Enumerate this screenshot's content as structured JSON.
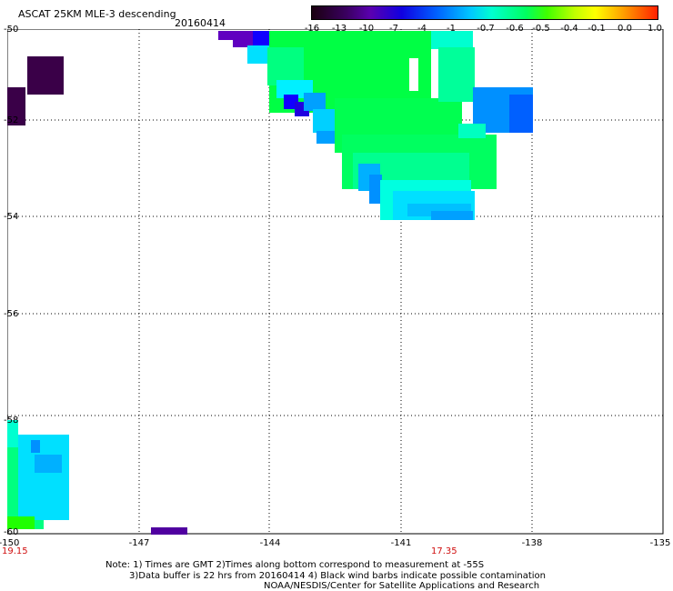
{
  "header": {
    "title": "ASCAT 25KM MLE-3 descending",
    "date": "20160414"
  },
  "colorbar": {
    "labels": [
      "-16",
      "-13",
      "-10",
      "-7",
      "-4",
      "-1",
      "-0.7",
      "-0.6",
      "-0.5",
      "-0.4",
      "-0.1",
      "0.0",
      "1.0"
    ]
  },
  "axes": {
    "lat_labels": [
      "-50",
      "-52",
      "-54",
      "-56",
      "-58",
      "-60"
    ],
    "lon_labels": [
      "-150",
      "-147",
      "-144",
      "-141",
      "-138",
      "-135"
    ],
    "time_left": "19.15",
    "time_center": "17.35"
  },
  "notes": {
    "line1": "Note: 1) Times are GMT 2)Times along bottom correspond to measurement at -55S",
    "line2": "3)Data buffer is 22 hrs from 20160414 4) Black wind barbs indicate possible contamination",
    "line3": "NOAA/NESDIS/Center for Satellite Applications and Research"
  }
}
